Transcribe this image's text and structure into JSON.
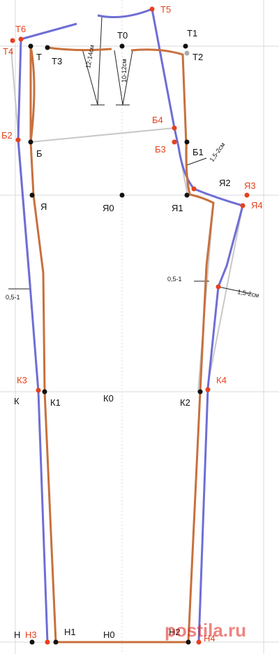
{
  "colors": {
    "front_line": "#c8703c",
    "back_line": "#6e6ed6",
    "guide_line": "#c8c8c8",
    "grid_line": "#d8d8d8",
    "point_black": "#111111",
    "point_red": "#e8401c",
    "label_red": "#e8401c"
  },
  "points": {
    "t": "Т",
    "t0": "Т0",
    "t1": "Т1",
    "t2": "Т2",
    "t3": "Т3",
    "t4": "Т4",
    "t5": "Т5",
    "t6": "Т6",
    "b": "Б",
    "b1": "Б1",
    "b2": "Б2",
    "b3": "Б3",
    "b4": "Б4",
    "ya": "Я",
    "ya0": "Я0",
    "ya1": "Я1",
    "ya2": "Я2",
    "ya3": "Я3",
    "ya4": "Я4",
    "k": "К",
    "k0": "К0",
    "k1": "К1",
    "k2": "К2",
    "k3": "К3",
    "k4": "К4",
    "n": "Н",
    "n0": "Н0",
    "n1": "Н1",
    "n2": "Н2",
    "n3": "Н3",
    "n4": "Н4"
  },
  "measurements": {
    "dart_front": "10-12см",
    "dart_back": "12-14см",
    "fly_curve": "1,5-2см",
    "back_curve": "1,5-2см",
    "back_step": "0,5-1",
    "side_step": "0,5-1"
  },
  "watermark": {
    "logo_text": "postila.ru"
  }
}
